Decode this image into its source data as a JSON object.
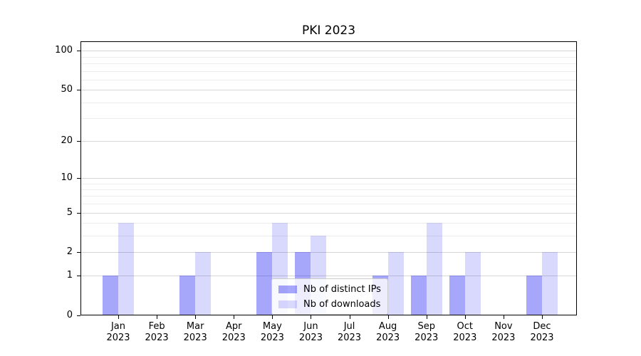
{
  "chart_data": {
    "type": "bar",
    "title": "PKI 2023",
    "months": [
      "Jan",
      "Feb",
      "Mar",
      "Apr",
      "May",
      "Jun",
      "Jul",
      "Aug",
      "Sep",
      "Oct",
      "Nov",
      "Dec"
    ],
    "year": "2023",
    "series": [
      {
        "name": "Nb of distinct IPs",
        "color": "rgba(0,0,240,0.35)",
        "values": [
          1,
          0,
          1,
          0,
          2,
          2,
          0,
          1,
          1,
          1,
          0,
          1
        ]
      },
      {
        "name": "Nb of downloads",
        "color": "rgba(0,0,240,0.15)",
        "values": [
          4,
          0,
          2,
          0,
          4,
          3,
          0,
          2,
          4,
          2,
          0,
          2
        ]
      }
    ],
    "y_axis": {
      "scale": "log1p",
      "major_ticks": [
        0,
        1,
        2,
        5,
        10,
        20,
        50,
        100
      ],
      "minor_ticks": [
        3,
        4,
        6,
        7,
        8,
        9,
        30,
        40,
        60,
        70,
        80,
        90
      ],
      "top_value": 118
    },
    "grid": {
      "show": true,
      "major_color": "#d6d6d6",
      "minor_color": "#ededed"
    },
    "legend": {
      "position": "lower-center"
    }
  }
}
